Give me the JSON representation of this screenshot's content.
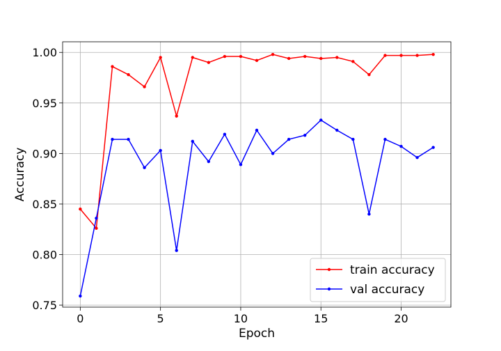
{
  "chart_data": {
    "type": "line",
    "title": "",
    "xlabel": "Epoch",
    "ylabel": "Accuracy",
    "xlim": [
      -1.1,
      23.1
    ],
    "ylim": [
      0.748,
      1.0105
    ],
    "xticks": [
      0,
      5,
      10,
      15,
      20
    ],
    "xtick_labels": [
      "0",
      "5",
      "10",
      "15",
      "20"
    ],
    "yticks": [
      0.75,
      0.8,
      0.85,
      0.9,
      0.95,
      1.0
    ],
    "ytick_labels": [
      "0.75",
      "0.80",
      "0.85",
      "0.90",
      "0.95",
      "1.00"
    ],
    "grid": true,
    "legend_position": "bottom-right",
    "x": [
      0,
      1,
      2,
      3,
      4,
      5,
      6,
      7,
      8,
      9,
      10,
      11,
      12,
      13,
      14,
      15,
      16,
      17,
      18,
      19,
      20,
      21,
      22
    ],
    "series": [
      {
        "name": "train accuracy",
        "color": "#ff0000",
        "marker": "dot",
        "values": [
          0.845,
          0.826,
          0.986,
          0.978,
          0.966,
          0.995,
          0.937,
          0.995,
          0.99,
          0.996,
          0.996,
          0.992,
          0.998,
          0.994,
          0.996,
          0.994,
          0.995,
          0.991,
          0.978,
          0.997,
          0.997,
          0.997,
          0.998
        ]
      },
      {
        "name": "val accuracy",
        "color": "#0000ff",
        "marker": "dot",
        "values": [
          0.759,
          0.836,
          0.914,
          0.914,
          0.886,
          0.903,
          0.804,
          0.912,
          0.892,
          0.919,
          0.889,
          0.923,
          0.9,
          0.914,
          0.918,
          0.933,
          0.923,
          0.914,
          0.84,
          0.914,
          0.907,
          0.896,
          0.906
        ]
      }
    ]
  }
}
